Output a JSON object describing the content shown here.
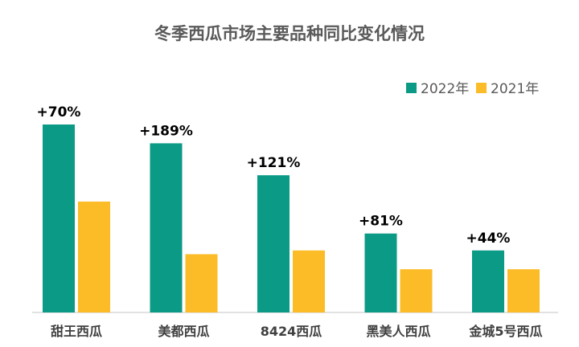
{
  "chart_data": {
    "type": "bar",
    "title": "冬季西瓜市场主要品种同比变化情况",
    "categories": [
      "甜王西瓜",
      "美都西瓜",
      "8424西瓜",
      "黑美人西瓜",
      "金城5号西瓜"
    ],
    "series": [
      {
        "name": "2022年",
        "color": "#0a9a86",
        "values": [
          100,
          90,
          73,
          42,
          33
        ]
      },
      {
        "name": "2021年",
        "color": "#fbbc28",
        "values": [
          59,
          31,
          33,
          23,
          23
        ]
      }
    ],
    "annotations": [
      "+70%",
      "+189%",
      "+121%",
      "+81%",
      "+44%"
    ],
    "ylim": [
      0,
      100
    ],
    "legend_position": "top-right",
    "grid": false
  }
}
